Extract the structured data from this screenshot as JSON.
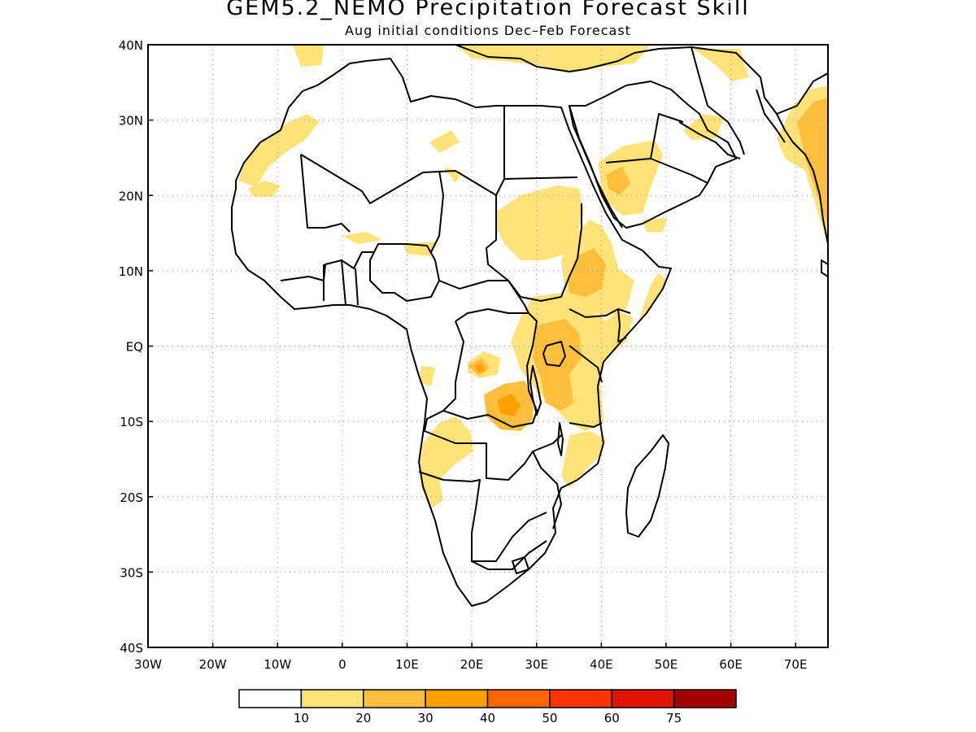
{
  "title": "GEM5.2_NEMO Precipitation Forecast Skill",
  "subtitle": "Aug initial conditions  Dec–Feb Forecast",
  "map": {
    "lon_range": [
      -30,
      75
    ],
    "lat_range": [
      -40,
      40
    ],
    "lon_ticks": [
      "30W",
      "20W",
      "10W",
      "0",
      "10E",
      "20E",
      "30E",
      "40E",
      "50E",
      "60E",
      "70E"
    ],
    "lat_ticks": [
      "40N",
      "30N",
      "20N",
      "10N",
      "EQ",
      "10S",
      "20S",
      "30S",
      "40S"
    ],
    "grid": true
  },
  "colorbar": {
    "labels": [
      "10",
      "20",
      "30",
      "40",
      "50",
      "60",
      "75"
    ],
    "colors": [
      "#ffffff",
      "#ffe278",
      "#ffbe3c",
      "#ff9f00",
      "#ff6400",
      "#ff3200",
      "#e11400",
      "#a50000"
    ]
  },
  "skill_regions": [
    {
      "name": "morocco-coast",
      "level": 1
    },
    {
      "name": "west-sahara",
      "level": 1
    },
    {
      "name": "mediterranean-north",
      "level": 1
    },
    {
      "name": "arabia",
      "level": 1
    },
    {
      "name": "arabia-core",
      "level": 2
    },
    {
      "name": "india",
      "level": 1
    },
    {
      "name": "india-core",
      "level": 2
    },
    {
      "name": "sudan",
      "level": 1
    },
    {
      "name": "ethiopia",
      "level": 1
    },
    {
      "name": "ethiopia-core",
      "level": 2
    },
    {
      "name": "east-africa",
      "level": 1
    },
    {
      "name": "lake-victoria-tanzania",
      "level": 2
    },
    {
      "name": "congo-south",
      "level": 1
    },
    {
      "name": "zambia",
      "level": 2
    },
    {
      "name": "zambia-core",
      "level": 3
    },
    {
      "name": "angola",
      "level": 1
    },
    {
      "name": "mozambique",
      "level": 1
    }
  ]
}
